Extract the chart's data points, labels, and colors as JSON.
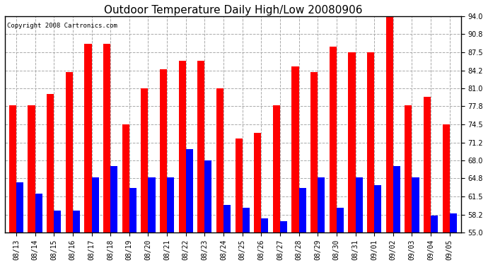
{
  "title": "Outdoor Temperature Daily High/Low 20080906",
  "copyright": "Copyright 2008 Cartronics.com",
  "dates": [
    "08/13",
    "08/14",
    "08/15",
    "08/16",
    "08/17",
    "08/18",
    "08/19",
    "08/20",
    "08/21",
    "08/22",
    "08/23",
    "08/24",
    "08/25",
    "08/26",
    "08/27",
    "08/28",
    "08/29",
    "08/30",
    "08/31",
    "09/01",
    "09/02",
    "09/03",
    "09/04",
    "09/05"
  ],
  "highs": [
    78.0,
    78.0,
    80.0,
    84.0,
    89.0,
    89.0,
    74.5,
    81.0,
    84.5,
    86.0,
    86.0,
    81.0,
    72.0,
    73.0,
    78.0,
    85.0,
    84.0,
    88.5,
    87.5,
    87.5,
    94.0,
    78.0,
    79.5,
    74.5
  ],
  "lows": [
    64.0,
    62.0,
    59.0,
    59.0,
    65.0,
    67.0,
    63.0,
    65.0,
    65.0,
    70.0,
    68.0,
    60.0,
    59.5,
    57.5,
    57.0,
    63.0,
    65.0,
    59.5,
    65.0,
    63.5,
    67.0,
    65.0,
    58.0,
    58.5
  ],
  "high_color": "#ff0000",
  "low_color": "#0000ff",
  "bg_color": "#ffffff",
  "grid_color": "#aaaaaa",
  "ymin": 55.0,
  "ymax": 94.0,
  "yticks": [
    55.0,
    58.2,
    61.5,
    64.8,
    68.0,
    71.2,
    74.5,
    77.8,
    81.0,
    84.2,
    87.5,
    90.8,
    94.0
  ],
  "bar_width": 0.38,
  "title_fontsize": 11,
  "copyright_fontsize": 6.5,
  "tick_fontsize": 7,
  "ytick_fontsize": 7
}
